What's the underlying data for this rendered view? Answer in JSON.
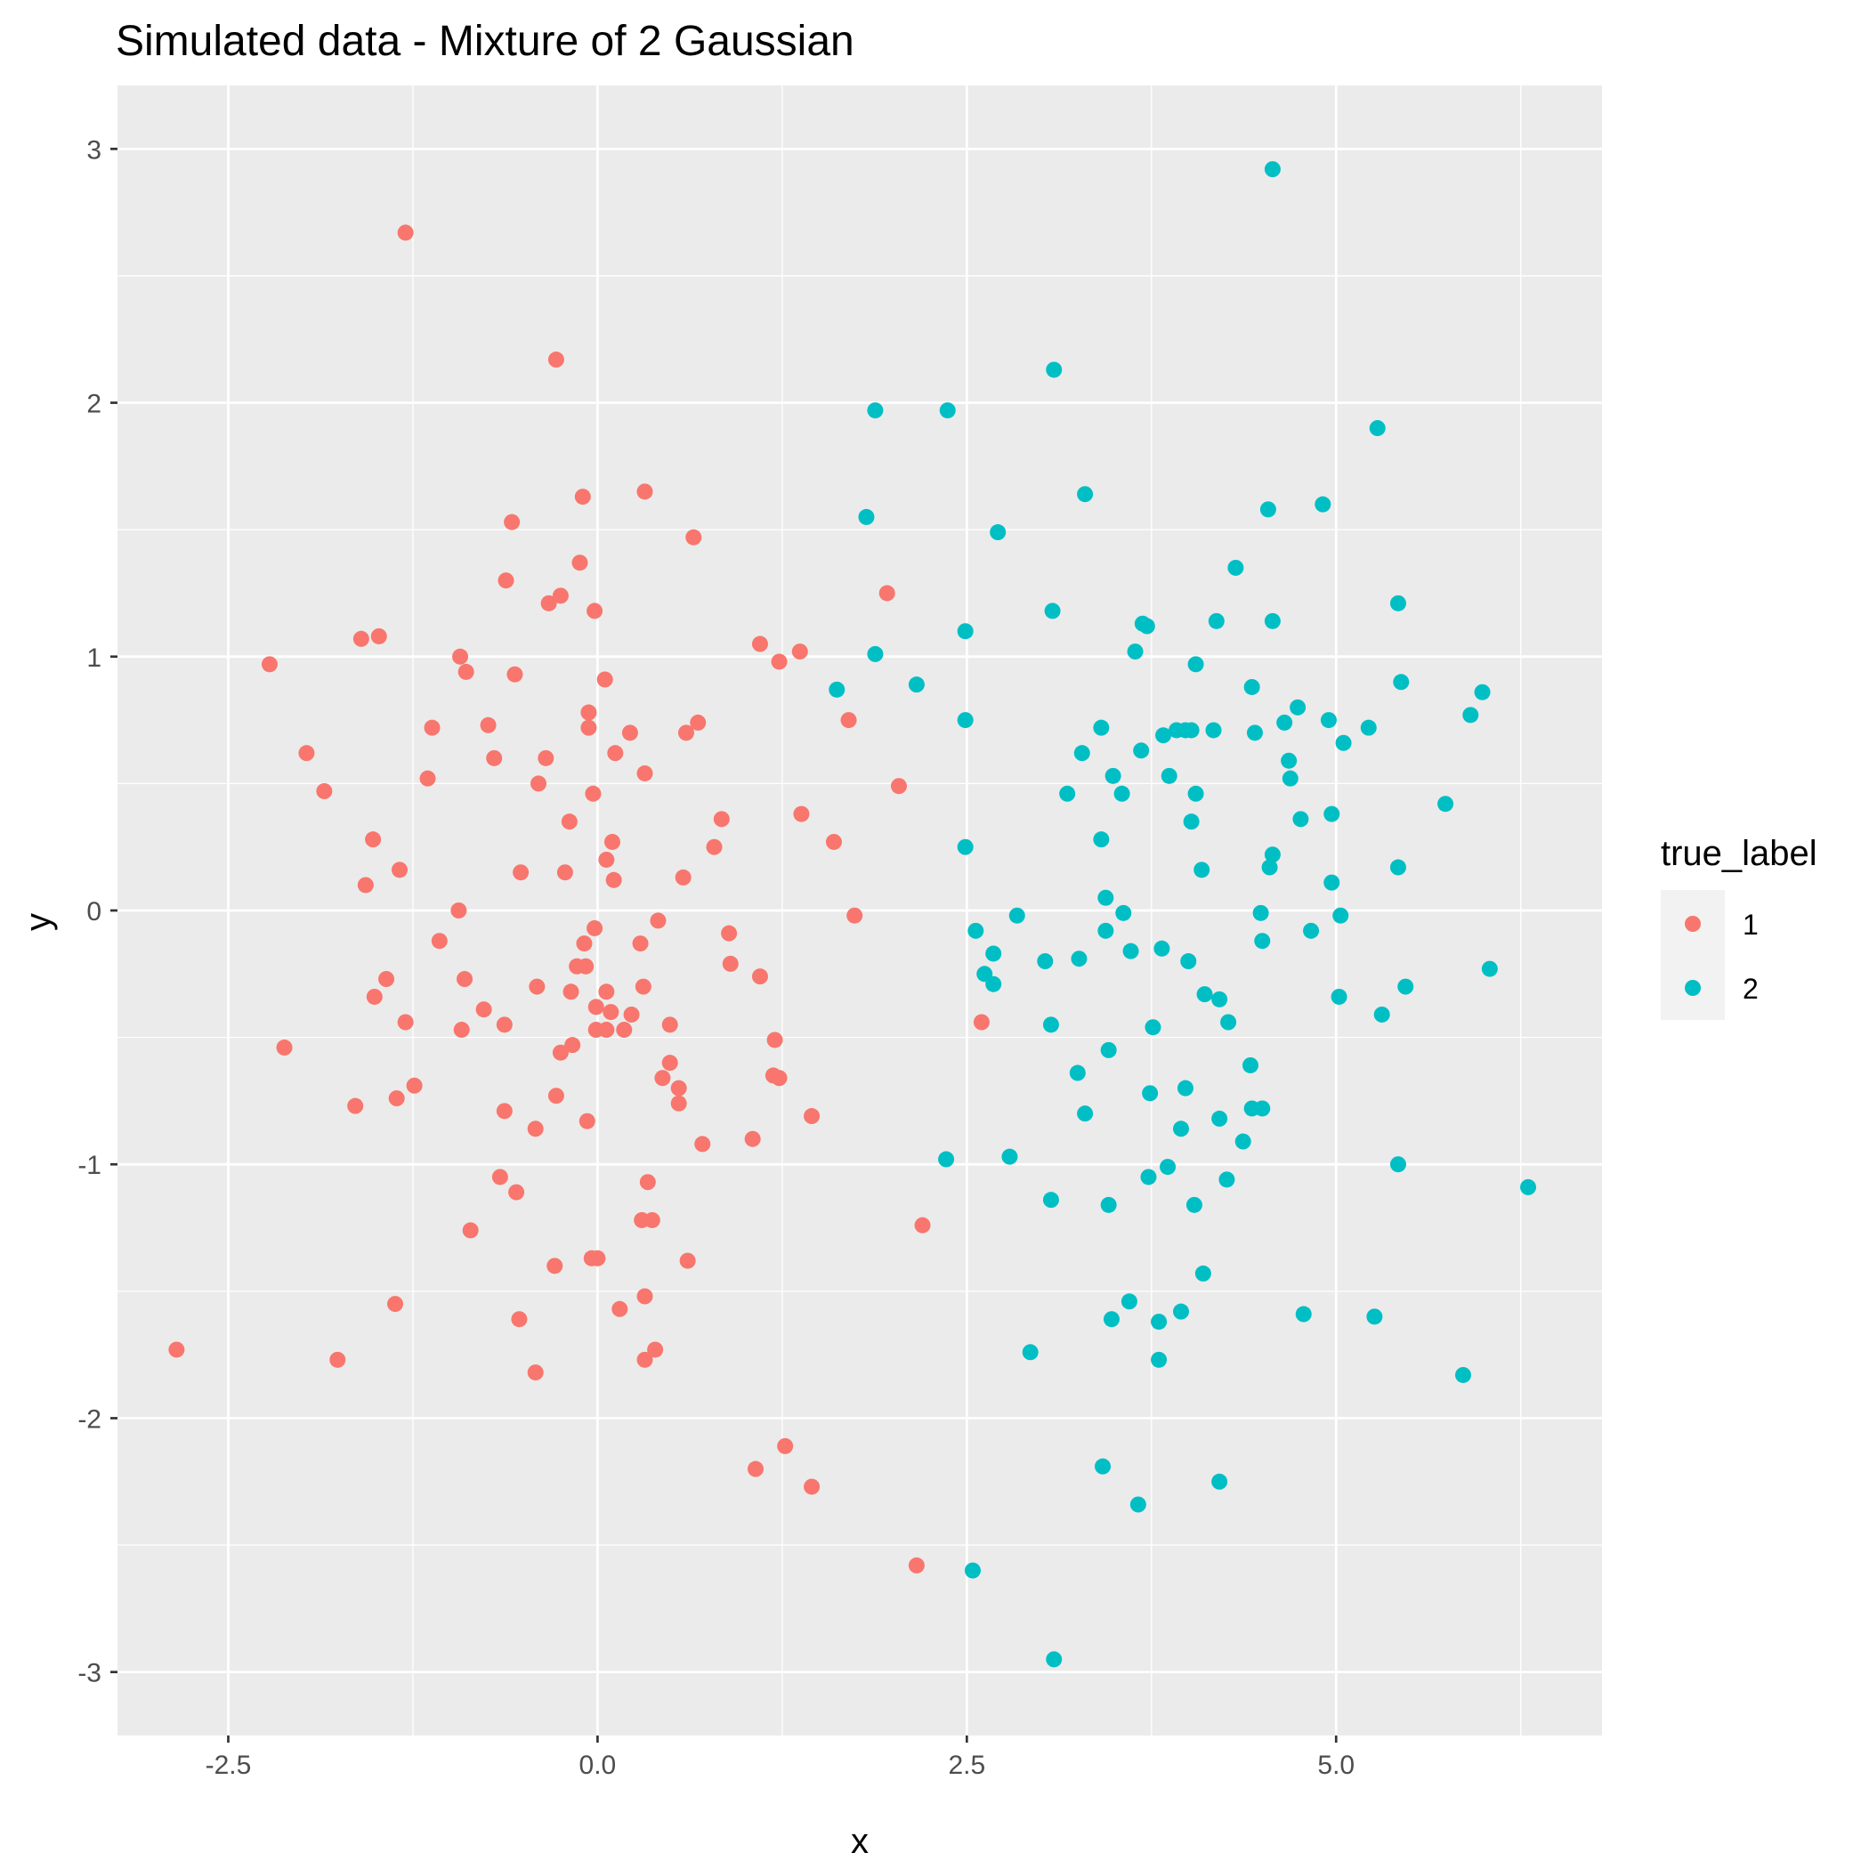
{
  "chart_data": {
    "type": "scatter",
    "title": "Simulated data - Mixture of 2 Gaussian",
    "xlabel": "x",
    "ylabel": "y",
    "xlim": [
      -3.25,
      6.8
    ],
    "ylim": [
      -3.25,
      3.25
    ],
    "x_ticks": [
      -2.5,
      0.0,
      2.5,
      5.0
    ],
    "x_tick_labels": [
      "-2.5",
      "0.0",
      "2.5",
      "5.0"
    ],
    "y_ticks": [
      -3,
      -2,
      -1,
      0,
      1,
      2,
      3
    ],
    "y_tick_labels": [
      "-3",
      "-2",
      "-1",
      "0",
      "1",
      "2",
      "3"
    ],
    "grid": true,
    "background": "#ebebeb",
    "legend": {
      "title": "true_label",
      "position": "right"
    },
    "series": [
      {
        "name": "1",
        "color": "#f8766d",
        "points": [
          [
            -1.3,
            2.67
          ],
          [
            -0.28,
            2.17
          ],
          [
            0.32,
            1.65
          ],
          [
            -0.1,
            1.63
          ],
          [
            -0.58,
            1.53
          ],
          [
            0.65,
            1.47
          ],
          [
            -0.12,
            1.37
          ],
          [
            -0.62,
            1.3
          ],
          [
            -0.25,
            1.24
          ],
          [
            -0.33,
            1.21
          ],
          [
            -0.02,
            1.18
          ],
          [
            1.96,
            1.25
          ],
          [
            1.1,
            1.05
          ],
          [
            1.37,
            1.02
          ],
          [
            1.23,
            0.98
          ],
          [
            -1.48,
            1.08
          ],
          [
            -1.6,
            1.07
          ],
          [
            -0.93,
            1.0
          ],
          [
            -2.22,
            0.97
          ],
          [
            -0.89,
            0.94
          ],
          [
            -0.56,
            0.93
          ],
          [
            0.05,
            0.91
          ],
          [
            -0.06,
            0.78
          ],
          [
            -0.06,
            0.72
          ],
          [
            0.68,
            0.74
          ],
          [
            1.7,
            0.75
          ],
          [
            0.22,
            0.7
          ],
          [
            0.6,
            0.7
          ],
          [
            -0.74,
            0.73
          ],
          [
            -1.12,
            0.72
          ],
          [
            -1.97,
            0.62
          ],
          [
            -0.7,
            0.6
          ],
          [
            -0.35,
            0.6
          ],
          [
            0.12,
            0.62
          ],
          [
            0.32,
            0.54
          ],
          [
            -1.15,
            0.52
          ],
          [
            -0.4,
            0.5
          ],
          [
            2.04,
            0.49
          ],
          [
            -1.85,
            0.47
          ],
          [
            -0.03,
            0.46
          ],
          [
            1.38,
            0.38
          ],
          [
            0.84,
            0.36
          ],
          [
            -0.19,
            0.35
          ],
          [
            1.6,
            0.27
          ],
          [
            -1.52,
            0.28
          ],
          [
            0.1,
            0.27
          ],
          [
            0.79,
            0.25
          ],
          [
            0.06,
            0.2
          ],
          [
            -1.34,
            0.16
          ],
          [
            -0.52,
            0.15
          ],
          [
            -0.22,
            0.15
          ],
          [
            0.11,
            0.12
          ],
          [
            0.58,
            0.13
          ],
          [
            -1.57,
            0.1
          ],
          [
            -0.94,
            0.0
          ],
          [
            1.74,
            -0.02
          ],
          [
            0.41,
            -0.04
          ],
          [
            -0.02,
            -0.07
          ],
          [
            0.89,
            -0.09
          ],
          [
            -1.07,
            -0.12
          ],
          [
            -0.09,
            -0.13
          ],
          [
            0.29,
            -0.13
          ],
          [
            -0.14,
            -0.22
          ],
          [
            -0.08,
            -0.22
          ],
          [
            0.9,
            -0.21
          ],
          [
            1.1,
            -0.26
          ],
          [
            -1.43,
            -0.27
          ],
          [
            -0.9,
            -0.27
          ],
          [
            -0.41,
            -0.3
          ],
          [
            0.31,
            -0.3
          ],
          [
            0.06,
            -0.32
          ],
          [
            -0.18,
            -0.32
          ],
          [
            -1.51,
            -0.34
          ],
          [
            -0.01,
            -0.38
          ],
          [
            0.09,
            -0.4
          ],
          [
            -0.77,
            -0.39
          ],
          [
            0.23,
            -0.41
          ],
          [
            -1.3,
            -0.44
          ],
          [
            -0.63,
            -0.45
          ],
          [
            0.49,
            -0.45
          ],
          [
            -0.92,
            -0.47
          ],
          [
            -0.01,
            -0.47
          ],
          [
            0.06,
            -0.47
          ],
          [
            0.18,
            -0.47
          ],
          [
            2.6,
            -0.44
          ],
          [
            1.2,
            -0.51
          ],
          [
            -2.12,
            -0.54
          ],
          [
            -0.17,
            -0.53
          ],
          [
            -0.25,
            -0.56
          ],
          [
            0.49,
            -0.6
          ],
          [
            1.19,
            -0.65
          ],
          [
            1.23,
            -0.66
          ],
          [
            0.44,
            -0.66
          ],
          [
            -1.24,
            -0.69
          ],
          [
            0.55,
            -0.7
          ],
          [
            -0.28,
            -0.73
          ],
          [
            -1.36,
            -0.74
          ],
          [
            0.55,
            -0.76
          ],
          [
            -1.64,
            -0.77
          ],
          [
            -0.63,
            -0.79
          ],
          [
            1.45,
            -0.81
          ],
          [
            -0.07,
            -0.83
          ],
          [
            -0.42,
            -0.86
          ],
          [
            1.05,
            -0.9
          ],
          [
            0.71,
            -0.92
          ],
          [
            -0.66,
            -1.05
          ],
          [
            0.34,
            -1.07
          ],
          [
            -0.55,
            -1.11
          ],
          [
            2.2,
            -1.24
          ],
          [
            0.3,
            -1.22
          ],
          [
            0.37,
            -1.22
          ],
          [
            -0.86,
            -1.26
          ],
          [
            -0.04,
            -1.37
          ],
          [
            0.0,
            -1.37
          ],
          [
            0.61,
            -1.38
          ],
          [
            -0.29,
            -1.4
          ],
          [
            0.32,
            -1.52
          ],
          [
            -1.37,
            -1.55
          ],
          [
            0.15,
            -1.57
          ],
          [
            -0.53,
            -1.61
          ],
          [
            -2.85,
            -1.73
          ],
          [
            0.39,
            -1.73
          ],
          [
            -1.76,
            -1.77
          ],
          [
            0.32,
            -1.77
          ],
          [
            -0.42,
            -1.82
          ],
          [
            1.27,
            -2.11
          ],
          [
            1.07,
            -2.2
          ],
          [
            1.45,
            -2.27
          ],
          [
            2.16,
            -2.58
          ]
        ]
      },
      {
        "name": "2",
        "color": "#00bfc4",
        "points": [
          [
            4.57,
            2.92
          ],
          [
            3.09,
            2.13
          ],
          [
            1.88,
            1.97
          ],
          [
            2.37,
            1.97
          ],
          [
            5.28,
            1.9
          ],
          [
            4.91,
            1.6
          ],
          [
            3.3,
            1.64
          ],
          [
            4.54,
            1.58
          ],
          [
            1.82,
            1.55
          ],
          [
            2.71,
            1.49
          ],
          [
            4.32,
            1.35
          ],
          [
            5.42,
            1.21
          ],
          [
            3.08,
            1.18
          ],
          [
            3.69,
            1.13
          ],
          [
            3.72,
            1.12
          ],
          [
            4.19,
            1.14
          ],
          [
            4.57,
            1.14
          ],
          [
            2.49,
            1.1
          ],
          [
            3.64,
            1.02
          ],
          [
            1.88,
            1.01
          ],
          [
            4.05,
            0.97
          ],
          [
            5.44,
            0.9
          ],
          [
            2.16,
            0.89
          ],
          [
            1.62,
            0.87
          ],
          [
            4.43,
            0.88
          ],
          [
            5.99,
            0.86
          ],
          [
            4.74,
            0.8
          ],
          [
            5.91,
            0.77
          ],
          [
            2.49,
            0.75
          ],
          [
            4.95,
            0.75
          ],
          [
            4.65,
            0.74
          ],
          [
            5.22,
            0.72
          ],
          [
            3.41,
            0.72
          ],
          [
            3.92,
            0.71
          ],
          [
            3.98,
            0.71
          ],
          [
            4.02,
            0.71
          ],
          [
            4.17,
            0.71
          ],
          [
            3.83,
            0.69
          ],
          [
            4.45,
            0.7
          ],
          [
            5.05,
            0.66
          ],
          [
            3.68,
            0.63
          ],
          [
            3.28,
            0.62
          ],
          [
            4.68,
            0.59
          ],
          [
            3.49,
            0.53
          ],
          [
            3.87,
            0.53
          ],
          [
            4.69,
            0.52
          ],
          [
            3.18,
            0.46
          ],
          [
            3.55,
            0.46
          ],
          [
            4.05,
            0.46
          ],
          [
            5.74,
            0.42
          ],
          [
            4.97,
            0.38
          ],
          [
            4.76,
            0.36
          ],
          [
            4.02,
            0.35
          ],
          [
            3.41,
            0.28
          ],
          [
            2.49,
            0.25
          ],
          [
            4.57,
            0.22
          ],
          [
            4.09,
            0.16
          ],
          [
            4.55,
            0.17
          ],
          [
            5.42,
            0.17
          ],
          [
            4.97,
            0.11
          ],
          [
            3.44,
            0.05
          ],
          [
            3.56,
            -0.01
          ],
          [
            4.49,
            -0.01
          ],
          [
            5.03,
            -0.02
          ],
          [
            2.84,
            -0.02
          ],
          [
            2.56,
            -0.08
          ],
          [
            3.44,
            -0.08
          ],
          [
            4.83,
            -0.08
          ],
          [
            4.5,
            -0.12
          ],
          [
            2.68,
            -0.17
          ],
          [
            3.61,
            -0.16
          ],
          [
            3.82,
            -0.15
          ],
          [
            3.03,
            -0.2
          ],
          [
            3.26,
            -0.19
          ],
          [
            4.0,
            -0.2
          ],
          [
            6.04,
            -0.23
          ],
          [
            2.62,
            -0.25
          ],
          [
            2.68,
            -0.29
          ],
          [
            5.47,
            -0.3
          ],
          [
            4.11,
            -0.33
          ],
          [
            5.02,
            -0.34
          ],
          [
            4.21,
            -0.35
          ],
          [
            5.31,
            -0.41
          ],
          [
            3.07,
            -0.45
          ],
          [
            4.27,
            -0.44
          ],
          [
            3.76,
            -0.46
          ],
          [
            3.46,
            -0.55
          ],
          [
            4.42,
            -0.61
          ],
          [
            3.25,
            -0.64
          ],
          [
            3.98,
            -0.7
          ],
          [
            3.74,
            -0.72
          ],
          [
            4.43,
            -0.78
          ],
          [
            4.5,
            -0.78
          ],
          [
            3.3,
            -0.8
          ],
          [
            4.21,
            -0.82
          ],
          [
            3.95,
            -0.86
          ],
          [
            4.37,
            -0.91
          ],
          [
            2.79,
            -0.97
          ],
          [
            2.36,
            -0.98
          ],
          [
            5.42,
            -1.0
          ],
          [
            3.86,
            -1.01
          ],
          [
            3.73,
            -1.05
          ],
          [
            4.26,
            -1.06
          ],
          [
            6.3,
            -1.09
          ],
          [
            3.07,
            -1.14
          ],
          [
            3.46,
            -1.16
          ],
          [
            4.04,
            -1.16
          ],
          [
            4.1,
            -1.43
          ],
          [
            3.6,
            -1.54
          ],
          [
            4.78,
            -1.59
          ],
          [
            3.95,
            -1.58
          ],
          [
            5.26,
            -1.6
          ],
          [
            3.48,
            -1.61
          ],
          [
            3.8,
            -1.62
          ],
          [
            2.93,
            -1.74
          ],
          [
            3.8,
            -1.77
          ],
          [
            5.86,
            -1.83
          ],
          [
            3.42,
            -2.19
          ],
          [
            4.21,
            -2.25
          ],
          [
            3.66,
            -2.34
          ],
          [
            2.54,
            -2.6
          ],
          [
            3.09,
            -2.95
          ]
        ]
      }
    ]
  }
}
